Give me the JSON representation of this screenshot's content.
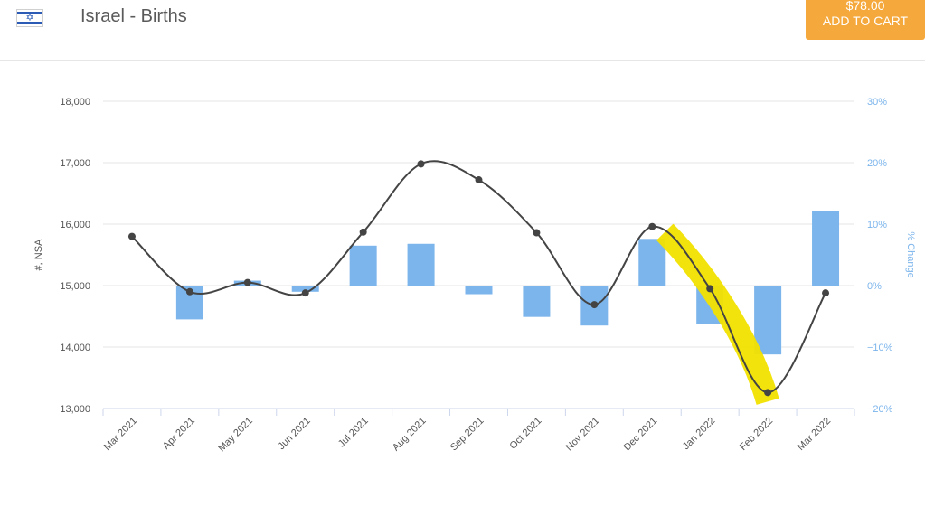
{
  "header": {
    "title": "Israel - Births",
    "flag_icon": "israel-flag-icon",
    "cart_price": "$78.00",
    "cart_label": "ADD TO CART"
  },
  "colors": {
    "line": "#444444",
    "bars": "#7cb5ec",
    "right_axis": "#7cb5ec",
    "highlight": "#f2e100",
    "grid": "#e6e6e6",
    "cart_button": "#f5a83b"
  },
  "chart_data": {
    "type": "line",
    "categories": [
      "Mar 2021",
      "Apr 2021",
      "May 2021",
      "Jun 2021",
      "Jul 2021",
      "Aug 2021",
      "Sep 2021",
      "Oct 2021",
      "Nov 2021",
      "Dec 2021",
      "Jan 2022",
      "Feb 2022",
      "Mar 2022"
    ],
    "series": [
      {
        "type": "line",
        "axis": "left",
        "values": [
          15800,
          14900,
          15050,
          14880,
          15870,
          16980,
          16720,
          15860,
          14690,
          15960,
          14950,
          13260,
          14880
        ]
      },
      {
        "type": "bar",
        "axis": "right",
        "values": [
          null,
          -5.5,
          0.8,
          -1.0,
          6.5,
          6.8,
          -1.4,
          -5.1,
          -6.5,
          7.6,
          -6.2,
          -11.2,
          12.2
        ]
      }
    ],
    "ylabel": "#, NSA",
    "y2label": "% Change",
    "ylim": [
      13000,
      18000
    ],
    "y2lim": [
      -20,
      30
    ],
    "yticks": [
      "13,000",
      "14,000",
      "15,000",
      "16,000",
      "17,000",
      "18,000"
    ],
    "y2ticks": [
      "−20%",
      "−10%",
      "0%",
      "10%",
      "20%",
      "30%"
    ],
    "grid": true,
    "highlight_range": [
      "Dec 2021",
      "Feb 2022"
    ]
  }
}
